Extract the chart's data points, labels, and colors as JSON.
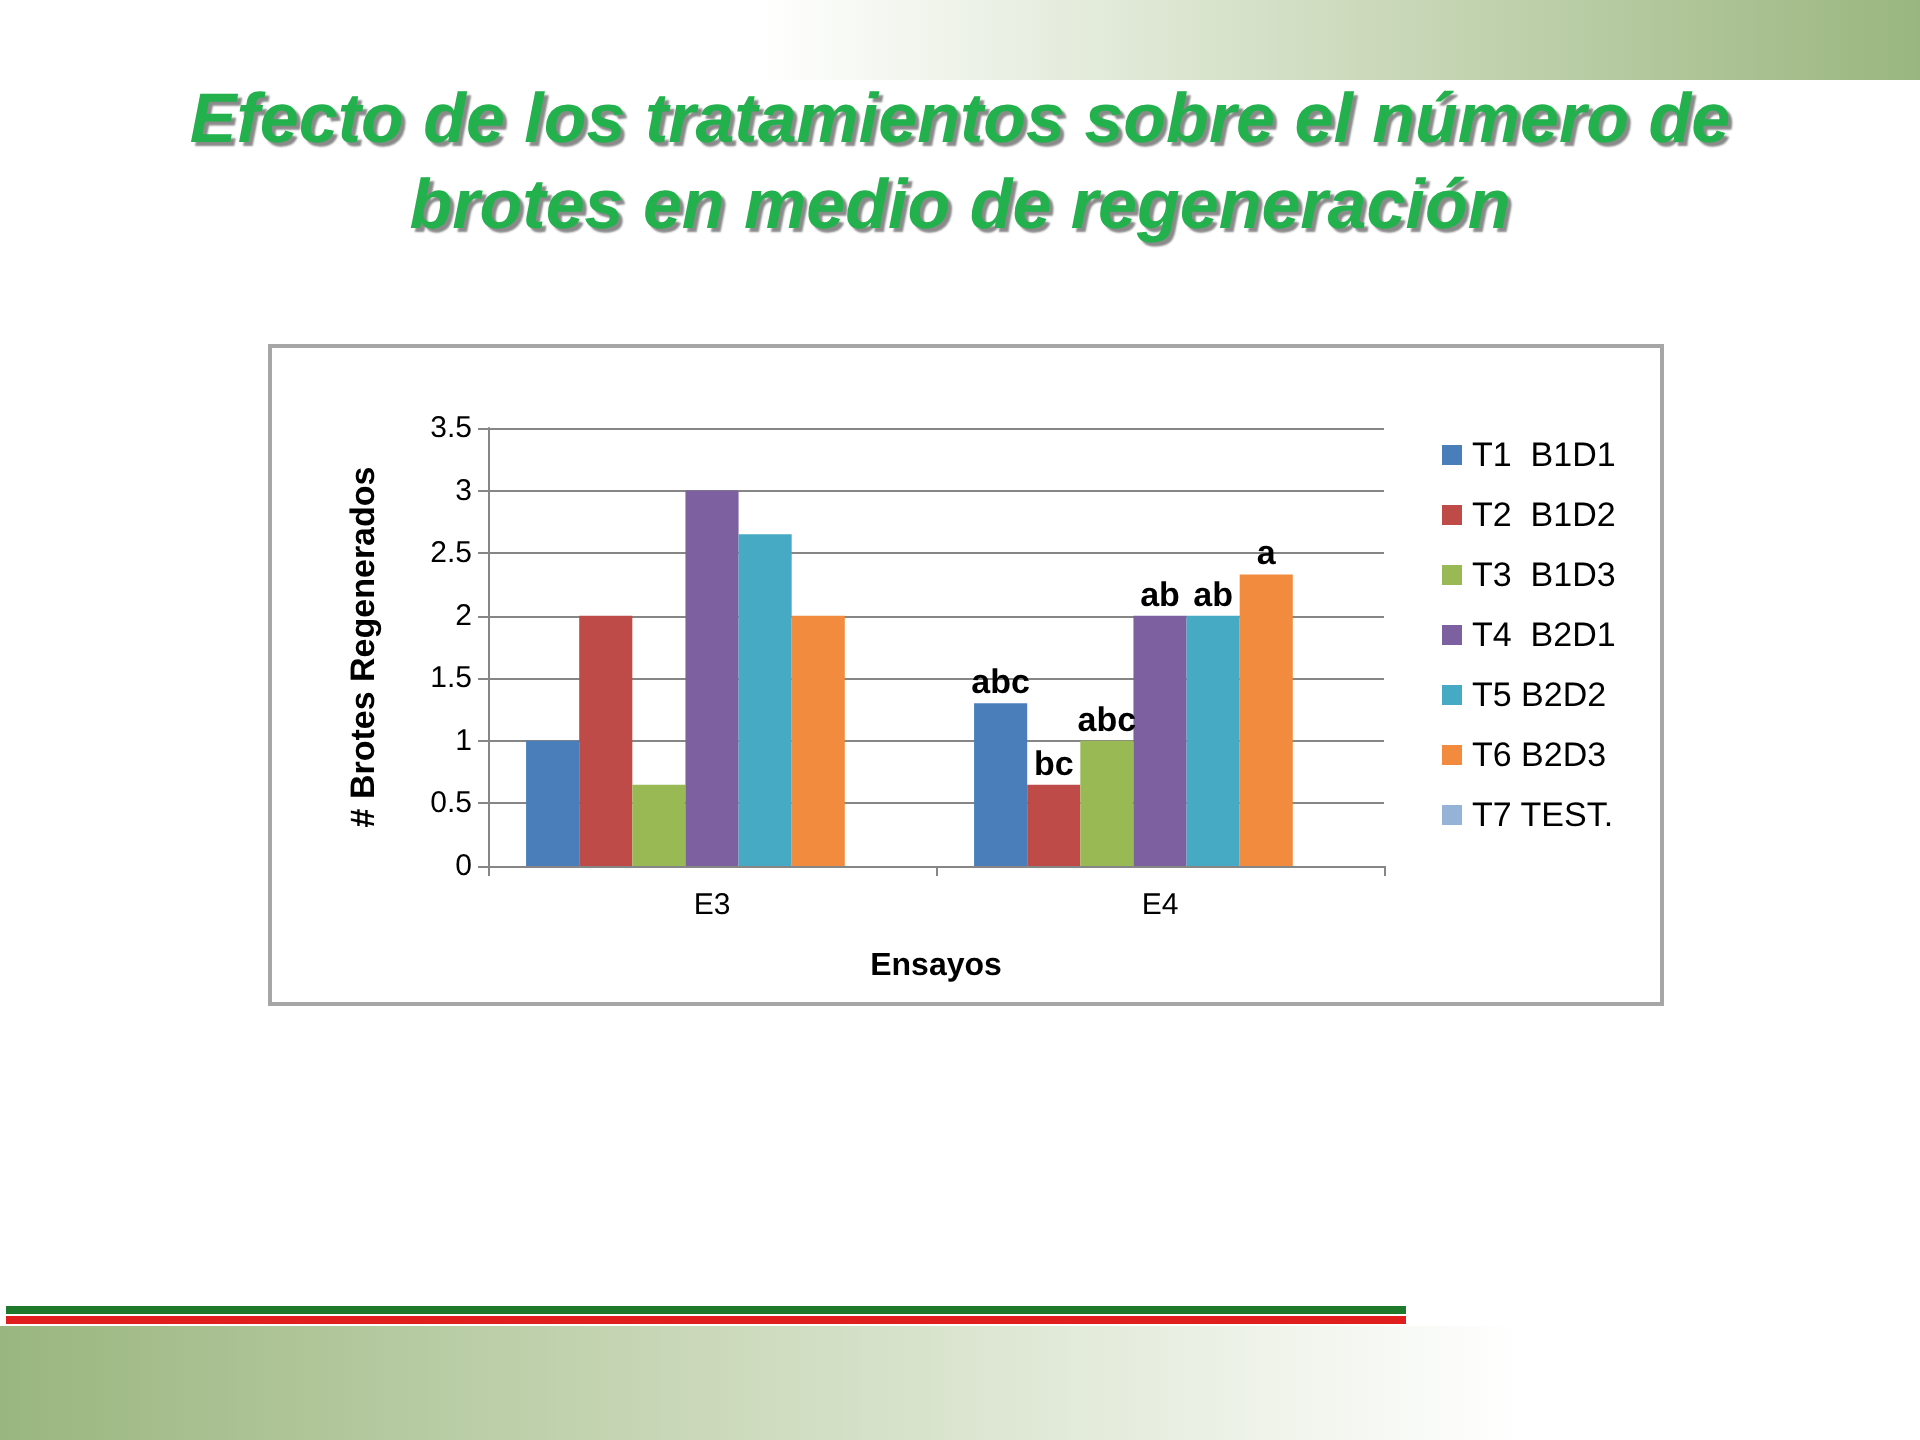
{
  "chart_data": {
    "type": "bar",
    "title": "Efecto de los tratamientos sobre el número de brotes en medio de regeneración",
    "xlabel": "Ensayos",
    "ylabel": "# Brotes Regenerados",
    "categories": [
      "E3",
      "E4"
    ],
    "series": [
      {
        "name": "T1  B1D1",
        "color": "#4a7ebb",
        "values": [
          1,
          1.3
        ],
        "value_labels": [
          null,
          "abc"
        ]
      },
      {
        "name": "T2  B1D2",
        "color": "#be4b48",
        "values": [
          2,
          0.65
        ],
        "value_labels": [
          null,
          "bc"
        ]
      },
      {
        "name": "T3  B1D3",
        "color": "#98b954",
        "values": [
          0.65,
          1
        ],
        "value_labels": [
          null,
          "abc"
        ]
      },
      {
        "name": "T4  B2D1",
        "color": "#7d60a0",
        "values": [
          3,
          2
        ],
        "value_labels": [
          null,
          "ab"
        ]
      },
      {
        "name": "T5 B2D2",
        "color": "#46aac5",
        "values": [
          2.65,
          2
        ],
        "value_labels": [
          null,
          "ab"
        ]
      },
      {
        "name": "T6 B2D3",
        "color": "#f38b3e",
        "values": [
          2,
          2.33
        ],
        "value_labels": [
          null,
          "a"
        ]
      },
      {
        "name": "T7 TEST.",
        "color": "#95b3d7",
        "values": [
          null,
          null
        ]
      }
    ],
    "ylim": [
      0,
      3.5
    ],
    "yticks": [
      0,
      0.5,
      1,
      1.5,
      2,
      2.5,
      3,
      3.5
    ],
    "grid": "y",
    "legend": "right"
  }
}
